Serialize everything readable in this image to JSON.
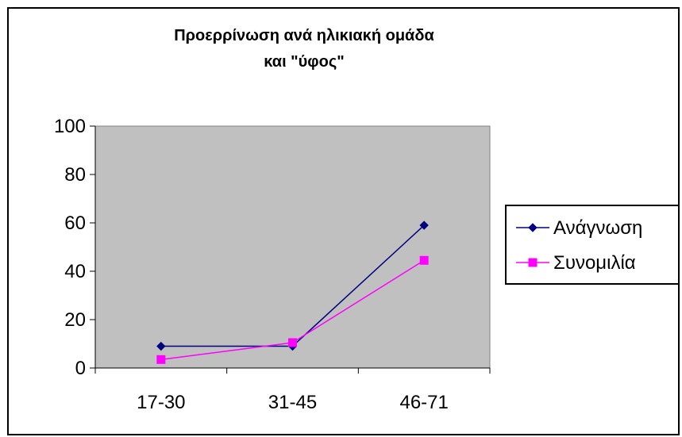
{
  "chart_data": {
    "type": "line",
    "title_lines": [
      "Προερρίνωση ανά ηλικιακή ομάδα",
      "και \"ύφος\""
    ],
    "categories": [
      "17-30",
      "31-45",
      "46-71"
    ],
    "ylim": [
      0,
      100
    ],
    "yticks": [
      0,
      20,
      40,
      60,
      80,
      100
    ],
    "grid": false,
    "plot_background": "#C0C0C0",
    "legend_position": "right",
    "series": [
      {
        "name": "Ανάγνωση",
        "values": [
          9,
          9,
          59
        ],
        "color": "#000080",
        "marker": "diamond"
      },
      {
        "name": "Συνομιλία",
        "values": [
          3.5,
          10.5,
          44.5
        ],
        "color": "#FF00FF",
        "marker": "square"
      }
    ]
  }
}
